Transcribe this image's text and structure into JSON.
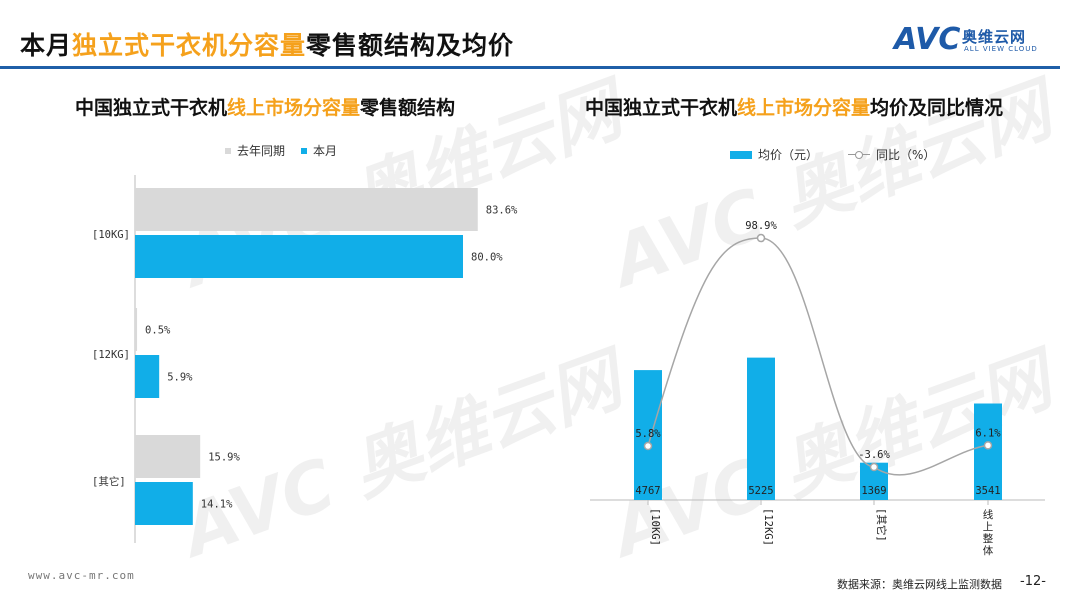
{
  "title": {
    "pre": "本月",
    "highlight": "独立式干衣机分容量",
    "post": "零售额结构及均价"
  },
  "logo": {
    "mark": "AVC",
    "name_cn": "奥维云网",
    "name_en": "ALL VIEW CLOUD"
  },
  "colors": {
    "current": "#11aee8",
    "previous": "#d9d9d9",
    "accent": "#f5a11c",
    "brand": "#1f5fa8",
    "line": "#a6a6a6"
  },
  "left_chart": {
    "title_pre": "中国独立式干衣机",
    "title_hl": "线上市场分容量",
    "title_post": "零售额结构",
    "legend": {
      "previous": "去年同期",
      "current": "本月"
    }
  },
  "right_chart": {
    "title_pre": "中国独立式干衣机",
    "title_hl": "线上市场分容量",
    "title_post": "均价及同比情况",
    "legend": {
      "bar": "均价（元）",
      "line": "同比（%）"
    }
  },
  "chart_data": [
    {
      "type": "bar",
      "orientation": "horizontal",
      "categories": [
        "[10KG]",
        "[12KG]",
        "[其它]"
      ],
      "series": [
        {
          "name": "去年同期",
          "values": [
            83.6,
            0.5,
            15.9
          ],
          "labels": [
            "83.6%",
            "0.5%",
            "15.9%"
          ]
        },
        {
          "name": "本月",
          "values": [
            80.0,
            5.9,
            14.1
          ],
          "labels": [
            "80.0%",
            "5.9%",
            "14.1%"
          ]
        }
      ],
      "xlim": [
        0,
        100
      ],
      "legend_position": "top"
    },
    {
      "type": "bar",
      "categories": [
        "[10KG]",
        "[12KG]",
        "[其它]",
        "线上整体"
      ],
      "series": [
        {
          "name": "均价（元）",
          "values": [
            4767,
            5225,
            1369,
            3541
          ],
          "labels": [
            "4767",
            "5225",
            "1369",
            "3541"
          ]
        },
        {
          "name": "同比（%）",
          "type": "line",
          "values": [
            5.8,
            98.9,
            -3.6,
            6.1
          ],
          "labels": [
            "5.8%",
            "98.9%",
            "-3.6%",
            "6.1%"
          ]
        }
      ],
      "legend_position": "top"
    }
  ],
  "footer": {
    "url": "www.avc-mr.com",
    "source": "数据来源：奥维云网线上监测数据",
    "page": "-12-"
  }
}
